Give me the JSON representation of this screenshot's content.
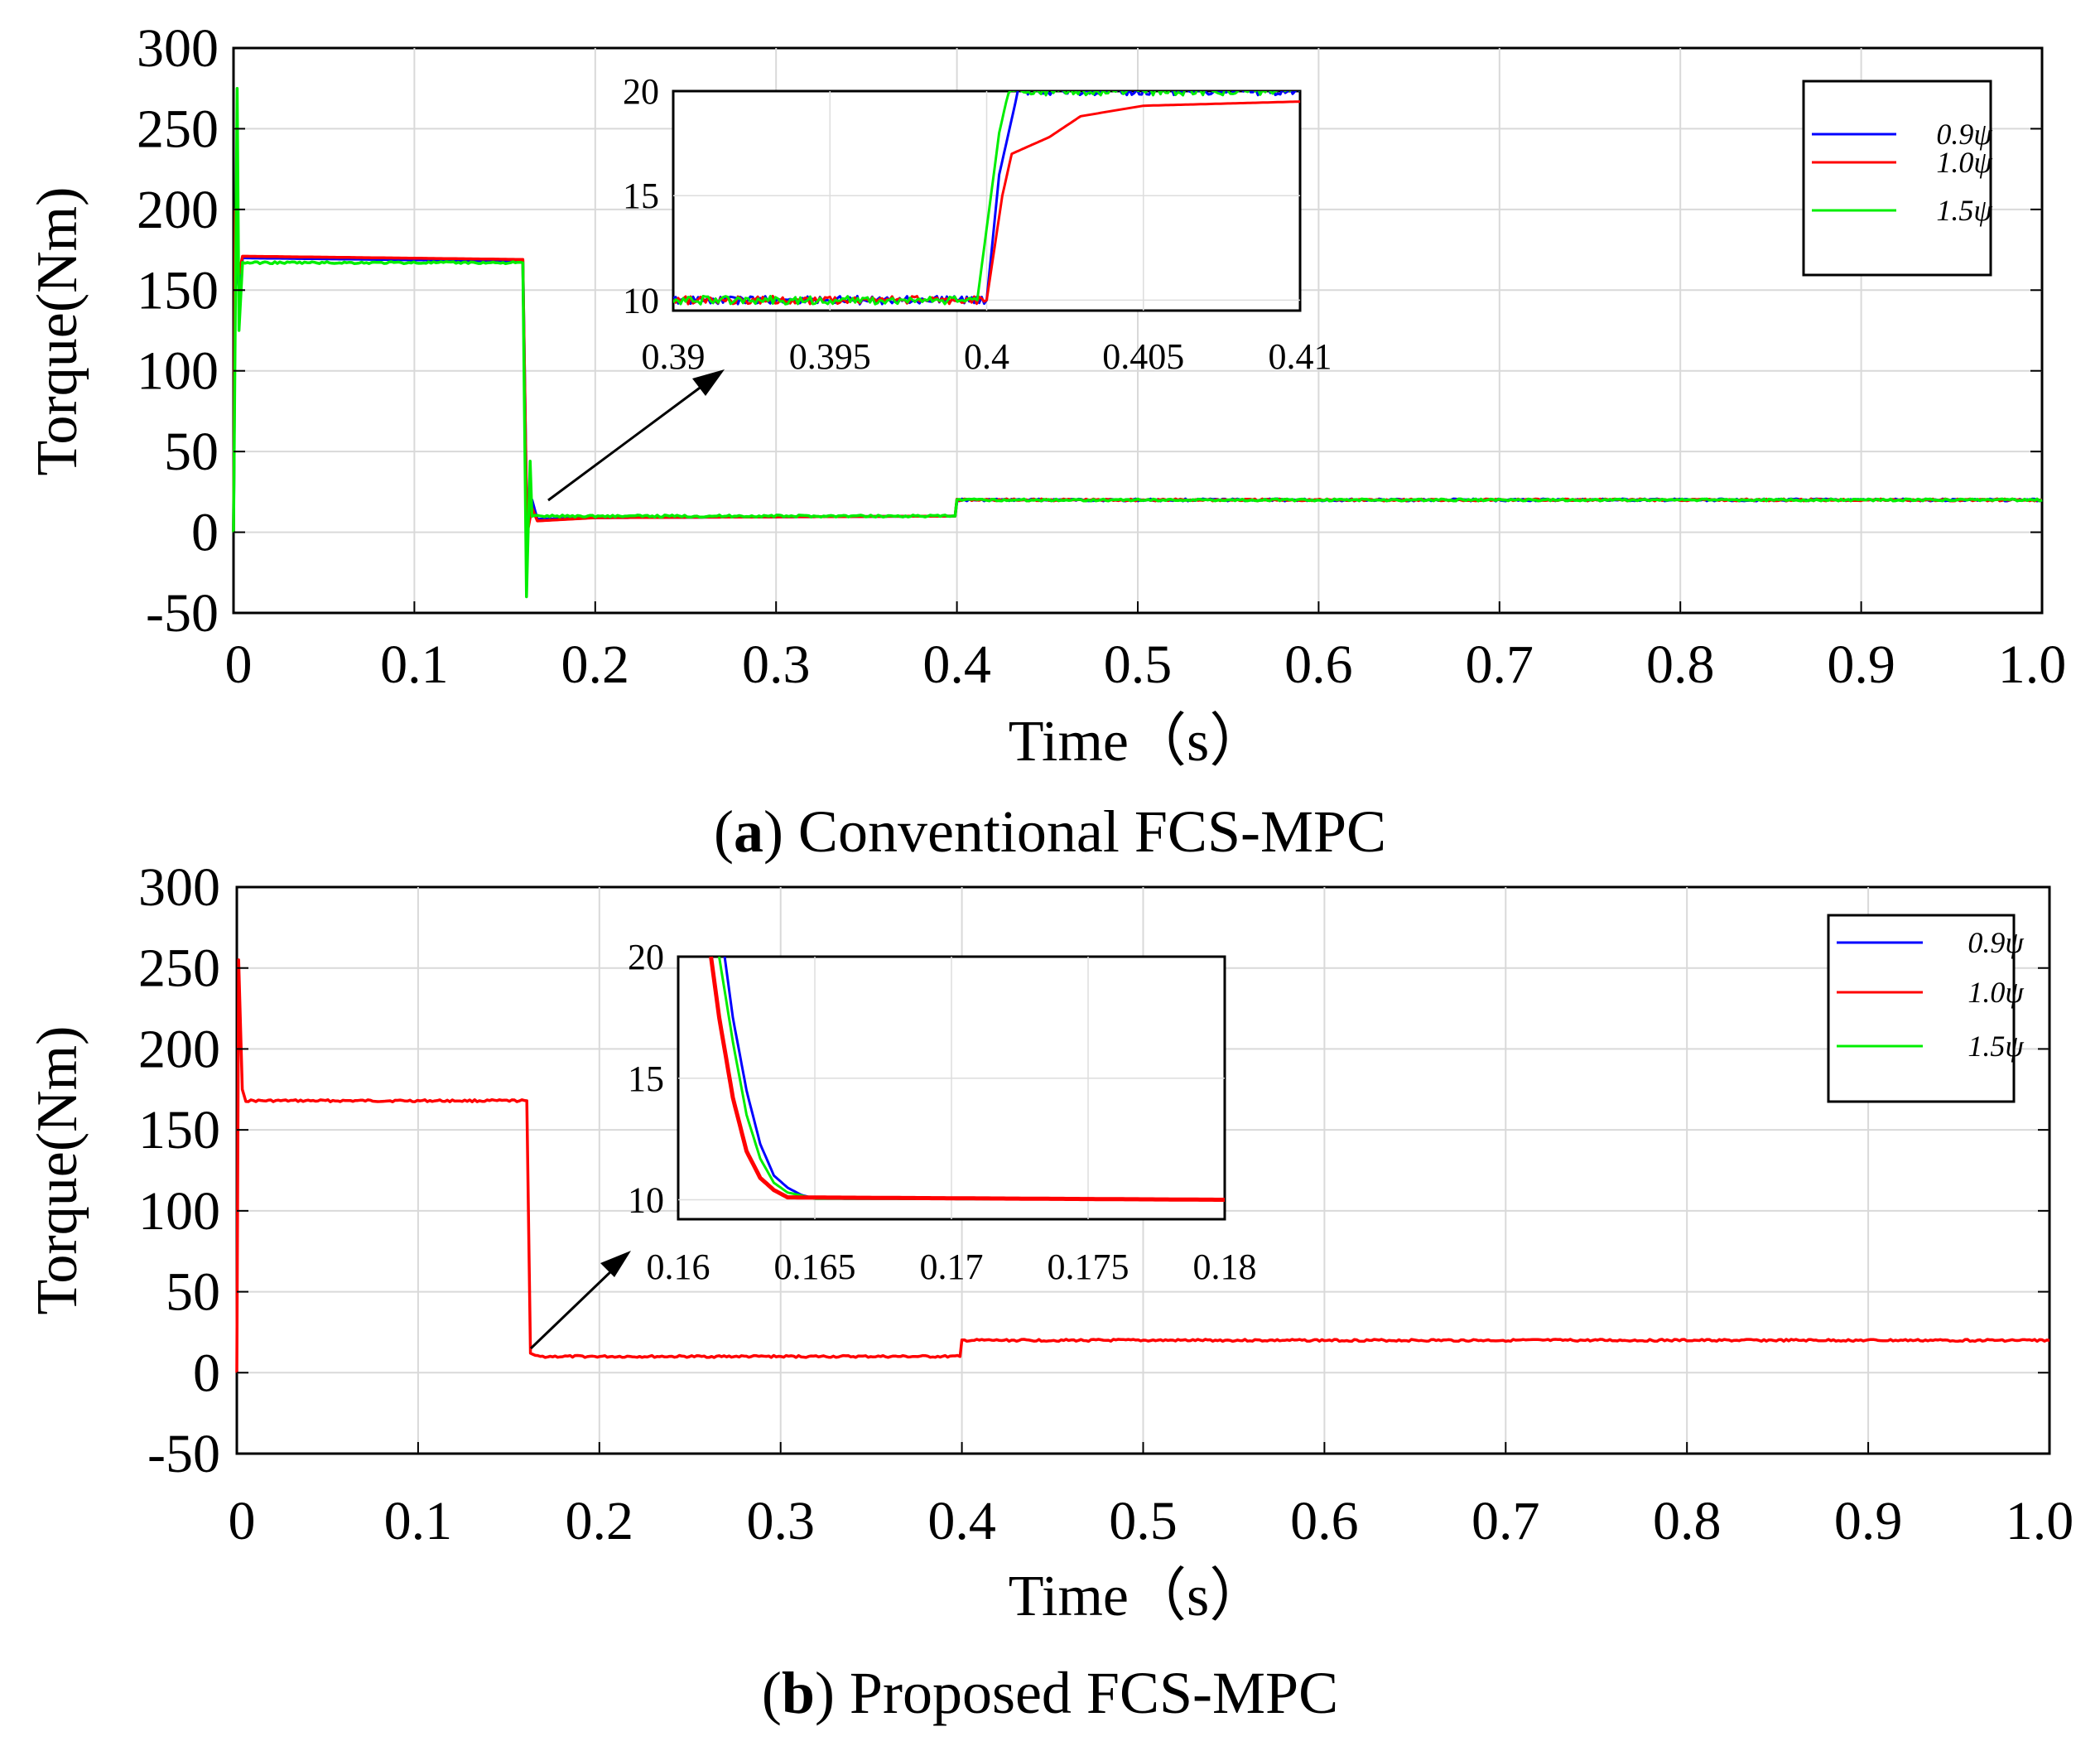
{
  "chart_data": [
    {
      "panel": "a",
      "type": "line",
      "caption_letter": "a",
      "caption_text": "Conventional FCS-MPC",
      "xlabel": "Time（s）",
      "ylabel": "Torque(Nm)",
      "xlim": [
        0,
        1.0
      ],
      "ylim": [
        -50,
        300
      ],
      "xticks": [
        "0",
        "0.1",
        "0.2",
        "0.3",
        "0.4",
        "0.5",
        "0.6",
        "0.7",
        "0.8",
        "0.9",
        "1.0"
      ],
      "yticks": [
        "300",
        "250",
        "200",
        "150",
        "100",
        "50",
        "0",
        "-50"
      ],
      "grid": true,
      "legend": [
        "0.9ψ",
        "1.0ψ",
        "1.5ψ"
      ],
      "legend_position": "top-right",
      "series": [
        {
          "name": "0.9ψ",
          "color": "#0000ff",
          "points": [
            [
              0,
              0
            ],
            [
              0.001,
              175
            ],
            [
              0.003,
              150
            ],
            [
              0.005,
              170
            ],
            [
              0.16,
              168
            ],
            [
              0.162,
              20
            ],
            [
              0.163,
              5
            ],
            [
              0.165,
              20
            ],
            [
              0.168,
              8
            ],
            [
              0.2,
              9
            ],
            [
              0.399,
              10
            ],
            [
              0.4,
              20
            ],
            [
              1.0,
              20
            ]
          ]
        },
        {
          "name": "1.0ψ",
          "color": "#ff0000",
          "points": [
            [
              0,
              0
            ],
            [
              0.001,
              200
            ],
            [
              0.003,
              160
            ],
            [
              0.005,
              171
            ],
            [
              0.16,
              169
            ],
            [
              0.162,
              15
            ],
            [
              0.163,
              3
            ],
            [
              0.165,
              15
            ],
            [
              0.168,
              7
            ],
            [
              0.2,
              9
            ],
            [
              0.399,
              10
            ],
            [
              0.4,
              20
            ],
            [
              1.0,
              20
            ]
          ]
        },
        {
          "name": "1.5ψ",
          "color": "#00ee00",
          "points": [
            [
              0,
              0
            ],
            [
              0.002,
              275
            ],
            [
              0.003,
              125
            ],
            [
              0.005,
              167
            ],
            [
              0.16,
              167
            ],
            [
              0.162,
              -40
            ],
            [
              0.163,
              5
            ],
            [
              0.164,
              44
            ],
            [
              0.165,
              10
            ],
            [
              0.2,
              10
            ],
            [
              0.399,
              10
            ],
            [
              0.4,
              20
            ],
            [
              1.0,
              20
            ]
          ]
        }
      ],
      "inset": {
        "xlim": [
          0.39,
          0.41
        ],
        "ylim": [
          9.5,
          20
        ],
        "xticks": [
          "0.39",
          "0.395",
          "0.4",
          "0.405",
          "0.41"
        ],
        "yticks": [
          "20",
          "15",
          "10"
        ],
        "series": [
          {
            "name": "0.9ψ",
            "points": [
              [
                0.39,
                10
              ],
              [
                0.4,
                10
              ],
              [
                0.4004,
                16
              ],
              [
                0.4007,
                18
              ],
              [
                0.401,
                20
              ],
              [
                0.41,
                20
              ]
            ]
          },
          {
            "name": "1.0ψ",
            "points": [
              [
                0.39,
                10
              ],
              [
                0.4,
                10
              ],
              [
                0.4005,
                15
              ],
              [
                0.4008,
                17
              ],
              [
                0.402,
                17.8
              ],
              [
                0.403,
                18.8
              ],
              [
                0.405,
                19.3
              ],
              [
                0.41,
                19.5
              ]
            ]
          },
          {
            "name": "1.5ψ",
            "points": [
              [
                0.39,
                10
              ],
              [
                0.3997,
                10
              ],
              [
                0.4004,
                18
              ],
              [
                0.4007,
                20
              ],
              [
                0.41,
                20
              ]
            ]
          }
        ],
        "zoom_source": [
          0.17,
          15
        ]
      }
    },
    {
      "panel": "b",
      "type": "line",
      "caption_letter": "b",
      "caption_text": "Proposed FCS-MPC",
      "xlabel": "Time（s）",
      "ylabel": "Torque(Nm)",
      "xlim": [
        0,
        1.0
      ],
      "ylim": [
        -50,
        300
      ],
      "xticks": [
        "0",
        "0.1",
        "0.2",
        "0.3",
        "0.4",
        "0.5",
        "0.6",
        "0.7",
        "0.8",
        "0.9",
        "1.0"
      ],
      "yticks": [
        "300",
        "250",
        "200",
        "150",
        "100",
        "50",
        "0",
        "-50"
      ],
      "grid": true,
      "legend": [
        "0.9ψ",
        "1.0ψ",
        "1.5ψ"
      ],
      "legend_position": "top-right",
      "series": [
        {
          "name": "1.0ψ",
          "color": "#ff0000",
          "points": [
            [
              0,
              0
            ],
            [
              0.001,
              255
            ],
            [
              0.003,
              175
            ],
            [
              0.005,
              168
            ],
            [
              0.16,
              168
            ],
            [
              0.162,
              12
            ],
            [
              0.166,
              10
            ],
            [
              0.399,
              10
            ],
            [
              0.4,
              20
            ],
            [
              1.0,
              20
            ]
          ]
        }
      ],
      "inset": {
        "xlim": [
          0.16,
          0.18
        ],
        "ylim": [
          9.2,
          20
        ],
        "xticks": [
          "0.16",
          "0.165",
          "0.17",
          "0.175",
          "0.18"
        ],
        "yticks": [
          "20",
          "15",
          "10"
        ],
        "series": [
          {
            "name": "0.9ψ",
            "points": [
              [
                0.1617,
                20
              ],
              [
                0.162,
                17.5
              ],
              [
                0.1625,
                14.5
              ],
              [
                0.163,
                12.3
              ],
              [
                0.1635,
                11.0
              ],
              [
                0.164,
                10.5
              ],
              [
                0.1645,
                10.2
              ],
              [
                0.165,
                10.05
              ],
              [
                0.18,
                10
              ]
            ]
          },
          {
            "name": "1.5ψ",
            "points": [
              [
                0.1615,
                20
              ],
              [
                0.162,
                16.5
              ],
              [
                0.1625,
                13.5
              ],
              [
                0.163,
                11.7
              ],
              [
                0.1635,
                10.7
              ],
              [
                0.164,
                10.3
              ],
              [
                0.165,
                10.05
              ],
              [
                0.18,
                10
              ]
            ]
          },
          {
            "name": "1.0ψ",
            "points": [
              [
                0.1612,
                20
              ],
              [
                0.1615,
                17.5
              ],
              [
                0.162,
                14.2
              ],
              [
                0.1625,
                12.0
              ],
              [
                0.163,
                10.9
              ],
              [
                0.1635,
                10.4
              ],
              [
                0.164,
                10.1
              ],
              [
                0.18,
                10
              ]
            ]
          }
        ],
        "zoom_source": [
          0.165,
          12
        ]
      }
    }
  ]
}
